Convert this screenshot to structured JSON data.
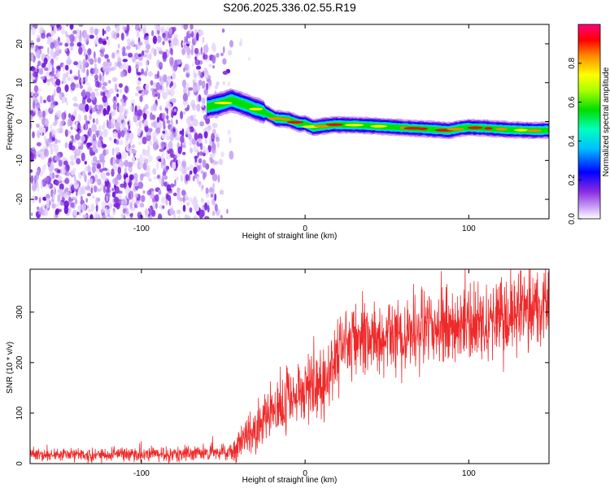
{
  "title": "S206.2025.336.02.55.R19",
  "chart_data": [
    {
      "type": "heatmap",
      "name": "spectrogram",
      "xlabel": "Height of straight line (km)",
      "ylabel": "Frequency (Hz)",
      "xlim": [
        -168,
        149
      ],
      "ylim": [
        -25,
        25
      ],
      "xticks": [
        -100,
        0,
        100
      ],
      "xtick_labels": [
        "-100",
        "0",
        "100"
      ],
      "yticks": [
        -20,
        -10,
        0,
        10,
        20
      ],
      "ytick_labels": [
        "-20",
        "-10",
        "0",
        "10",
        "20"
      ],
      "noise_region_x": [
        -168,
        -45
      ],
      "signal_track": {
        "x": [
          -60,
          -52,
          -45,
          -38,
          -32,
          -25,
          -18,
          -10,
          -4,
          0,
          5,
          10,
          18,
          30,
          45,
          60,
          75,
          88,
          95,
          100,
          110,
          125,
          140,
          149
        ],
        "y": [
          3.8,
          4.5,
          5.5,
          4.5,
          3.5,
          2.5,
          0.8,
          0.5,
          -0.5,
          -0.5,
          -1.5,
          -1.2,
          -0.8,
          -0.9,
          -1.2,
          -1.6,
          -1.9,
          -2.3,
          -1.7,
          -1.5,
          -1.7,
          -2.1,
          -2.3,
          -2.2
        ]
      },
      "colorbar": {
        "label": "Normalized spectral amplitude",
        "range": [
          0,
          1
        ],
        "ticks": [
          0.0,
          0.2,
          0.4,
          0.6,
          0.8
        ],
        "tick_labels": [
          "0.0",
          "0.2",
          "0.4",
          "0.6",
          "0.8"
        ]
      }
    },
    {
      "type": "line",
      "name": "snr",
      "xlabel": "Height of straight line (km)",
      "ylabel": "SNR (10 * v/v)",
      "xlim": [
        -168,
        149
      ],
      "ylim": [
        0,
        385
      ],
      "xticks": [
        -100,
        0,
        100
      ],
      "xtick_labels": [
        "-100",
        "0",
        "100"
      ],
      "yticks": [
        0,
        100,
        200,
        300
      ],
      "ytick_labels": [
        "0",
        "100",
        "200",
        "300"
      ],
      "series": [
        {
          "name": "SNR",
          "color": "#ef2929",
          "trend": {
            "x": [
              -168,
              -100,
              -60,
              -45,
              -38,
              -30,
              -20,
              -10,
              0,
              10,
              15,
              20,
              28,
              40,
              60,
              80,
              100,
              120,
              140,
              149
            ],
            "y": [
              18,
              18,
              20,
              25,
              40,
              70,
              100,
              130,
              150,
              160,
              190,
              225,
              245,
              250,
              255,
              268,
              280,
              290,
              315,
              320
            ]
          },
          "noise_amplitude": {
            "x": [
              -168,
              -45,
              -35,
              0,
              20,
              149
            ],
            "y": [
              12,
              14,
              40,
              60,
              65,
              75
            ]
          }
        }
      ]
    }
  ]
}
